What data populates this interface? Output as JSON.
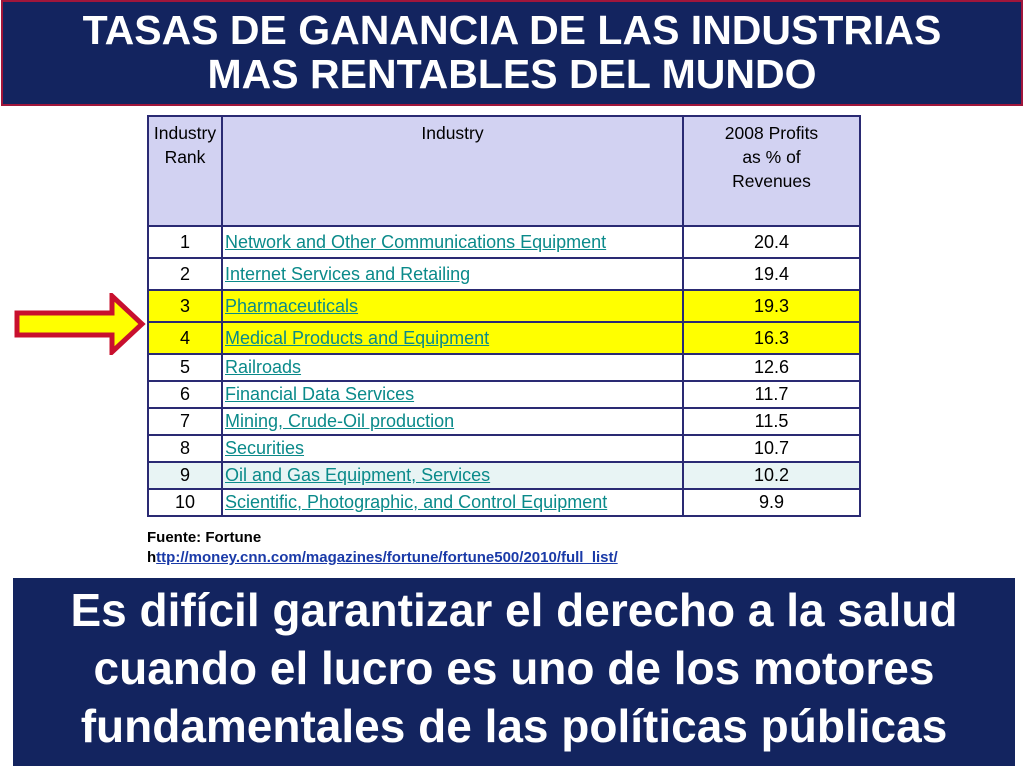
{
  "title": {
    "line1": "TASAS DE GANANCIA DE LAS INDUSTRIAS",
    "line2": "MAS RENTABLES DEL MUNDO"
  },
  "table": {
    "headers": {
      "rank_line1": "Industry",
      "rank_line2": "Rank",
      "industry": "Industry",
      "value_line1": "2008 Profits",
      "value_line2": "as % of",
      "value_line3": "Revenues"
    },
    "rows": [
      {
        "rank": "1",
        "industry": "Network and Other Communications Equipment",
        "value": "20.4"
      },
      {
        "rank": "2",
        "industry": "Internet Services and Retailing",
        "value": "19.4"
      },
      {
        "rank": "3",
        "industry": "Pharmaceuticals",
        "value": "19.3"
      },
      {
        "rank": "4",
        "industry": "Medical Products and Equipment",
        "value": "16.3"
      },
      {
        "rank": "5",
        "industry": "Railroads",
        "value": "12.6"
      },
      {
        "rank": "6",
        "industry": "Financial Data Services",
        "value": "11.7"
      },
      {
        "rank": "7",
        "industry": "Mining, Crude-Oil production",
        "value": "11.5"
      },
      {
        "rank": "8",
        "industry": "Securities",
        "value": "10.7"
      },
      {
        "rank": "9",
        "industry": "Oil and Gas Equipment, Services",
        "value": "10.2"
      },
      {
        "rank": "10",
        "industry": "Scientific, Photographic, and Control Equipment",
        "value": "9.9"
      }
    ]
  },
  "source": {
    "label": "Fuente: Fortune",
    "url_prefix": "h",
    "url_rest": "ttp://money.cnn.com/magazines/fortune/fortune500/2010/full_list/"
  },
  "statement": {
    "line1": "Es difícil garantizar el derecho a la salud",
    "line2": "cuando el lucro es uno de los motores",
    "line3": "fundamentales de las políticas públicas"
  },
  "colors": {
    "title_bg": "#13245f",
    "title_border": "#a0163b",
    "header_bg": "#d2d2f2",
    "highlight": "#ffff00",
    "link": "#0a8a8a",
    "arrow_fill": "#ffff00",
    "arrow_stroke": "#c8102e"
  },
  "icons": {
    "arrow": "right-arrow-icon"
  }
}
